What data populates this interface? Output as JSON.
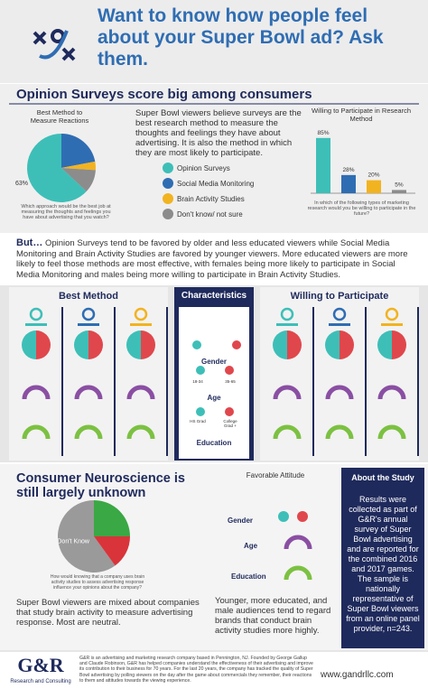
{
  "header": {
    "title": "Want to know how people feel about your Super Bowl ad? Ask them."
  },
  "section1": {
    "heading": "Opinion Surveys score big among consumers",
    "text": "Super Bowl viewers believe surveys are the best research method to measure the thoughts and feelings they have about advertising. It is also the method in which they are most likely to participate."
  },
  "chart_data": [
    {
      "type": "pie",
      "title": "Best Method to Measure Reactions",
      "caption": "Which approach would be the best job at measuring the thoughts and feelings you have about advertising that you watch?",
      "categories": [
        "Opinion Surveys",
        "Social Media Monitoring",
        "Brain Activity Studies",
        "Don't know/ not sure"
      ],
      "values": [
        63,
        22,
        4,
        11
      ],
      "value_labels": [
        "63%",
        null,
        null,
        null
      ],
      "colors": [
        "#3dbfb8",
        "#2f6db3",
        "#f2b320",
        "#8c8c8c"
      ]
    },
    {
      "type": "bar",
      "title": "Willing to Participate in Research Method",
      "caption": "In which of the following types of marketing research would you be willing to participate in the future?",
      "values": [
        85,
        28,
        20,
        5
      ],
      "value_labels": [
        "85%",
        "28%",
        "20%",
        "5%"
      ],
      "colors": [
        "#3dbfb8",
        "#2f6db3",
        "#f2b320",
        "#8c8c8c"
      ]
    },
    {
      "type": "pie",
      "caption": "How would knowing that a company uses brain activity studies to assess advertising response influence your opinions about the company?",
      "categories": [
        "Don't Know",
        null,
        null
      ],
      "values": [
        60,
        25,
        15
      ],
      "colors": [
        "#9a9a9a",
        "#3aa844",
        "#d9343a"
      ]
    }
  ],
  "but": {
    "lead": "But…",
    "text": "Opinion Surveys tend to be favored by older and less educated viewers while Social Media Monitoring and Brain Activity Studies are favored by younger viewers. More educated viewers are more likely to feel those methods are most effective, with females being more likely to participate in Social Media Monitoring and males being more willing to participate in Brain Activity Studies."
  },
  "middle": {
    "columns": [
      "Best Method",
      "Characteristics",
      "Willing to Participate"
    ],
    "rows": [
      "Gender",
      "Age",
      "Education"
    ],
    "age_groups": [
      "18-34",
      "35-65"
    ],
    "education_groups": [
      "HS Grad",
      "College Grad +"
    ]
  },
  "neuro": {
    "heading": "Consumer Neuroscience is still largely unknown",
    "text": "Super Bowl viewers are mixed about companies that study brain activity to measure advertising response. Most are neutral.",
    "favorable_title": "Favorable Attitude",
    "rows": [
      "Gender",
      "Age",
      "Education"
    ],
    "favorable_text": "Younger, more educated, and male audiences tend to regard brands that conduct brain activity studies more highly."
  },
  "about": {
    "title": "About the Study",
    "text": "Results were collected as part of G&R's annual survey of Super Bowl advertising and are reported for the combined 2016 and 2017 games. The sample is nationally representative of Super Bowl viewers from an online panel provider, n=243."
  },
  "footer": {
    "logo": "G&R",
    "tagline": "Research and Consulting",
    "text": "G&R is an advertising and marketing research company based in Pennington, NJ. Founded by George Gallup and Claude Robinson, G&R has helped companies understand the effectiveness of their advertising and improve its contribution to their business for 70 years. For the last 20 years, the company has tracked the quality of Super Bowl advertising by polling viewers on the day after the game about commercials they remember, their reactions to them and attitudes towards the viewing experience.",
    "url": "www.gandrllc.com"
  }
}
